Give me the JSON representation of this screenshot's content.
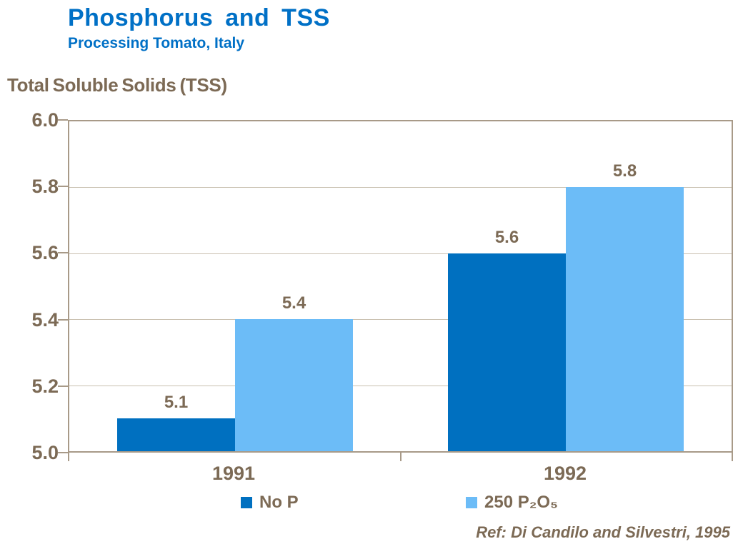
{
  "header": {
    "title": "Phosphorus and TSS",
    "subtitle": "Processing Tomato, Italy"
  },
  "axis_title": "Total Soluble Solids (TSS)",
  "footer": {
    "reference": "Ref: Di Candilo and Silvestri, 1995"
  },
  "colors": {
    "title_blue": "#0070C6",
    "text_brown": "#7C6A55",
    "axis_line": "#A89A88",
    "gridline": "#C9C0B0",
    "series_no_p": "#0070C0",
    "series_250_p2o5": "#6CBCF7"
  },
  "chart_data": {
    "type": "bar",
    "title": "Phosphorus and TSS — Processing Tomato, Italy",
    "ylabel": "Total Soluble Solids (TSS)",
    "xlabel": "",
    "categories": [
      "1991",
      "1992"
    ],
    "series": [
      {
        "name": "No P",
        "color": "#0070C0",
        "values": [
          5.1,
          5.6
        ]
      },
      {
        "name": "250 P₂O₅",
        "color": "#6CBCF7",
        "values": [
          5.4,
          5.8
        ]
      }
    ],
    "ylim": [
      5.0,
      6.0
    ],
    "yticks": [
      5.0,
      5.2,
      5.4,
      5.6,
      5.8,
      6.0
    ],
    "grid": true,
    "legend_position": "bottom",
    "bar_value_labels": true
  }
}
